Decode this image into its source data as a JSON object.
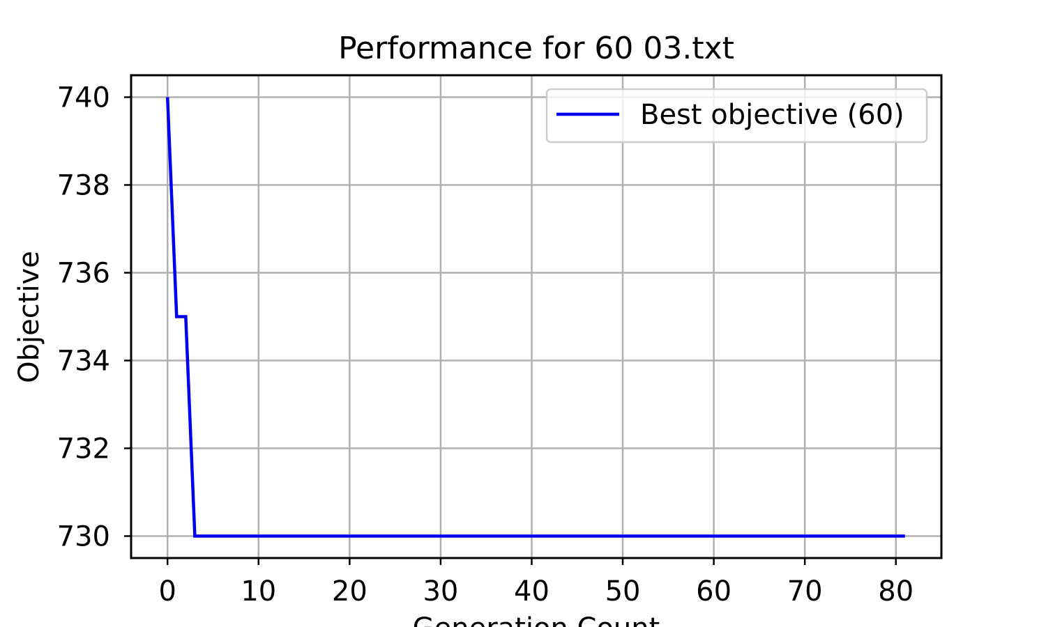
{
  "chart_data": {
    "type": "line",
    "title": "Performance for 60 03.txt",
    "xlabel": "Generation Count",
    "ylabel": "Objective",
    "xlim": [
      -4,
      85
    ],
    "ylim": [
      729.5,
      740.5
    ],
    "xticks": [
      0,
      10,
      20,
      30,
      40,
      50,
      60,
      70,
      80
    ],
    "yticks": [
      730,
      732,
      734,
      736,
      738,
      740
    ],
    "xtick_labels": [
      "0",
      "10",
      "20",
      "30",
      "40",
      "50",
      "60",
      "70",
      "80"
    ],
    "ytick_labels": [
      "730",
      "732",
      "734",
      "736",
      "738",
      "740"
    ],
    "grid": true,
    "legend_position": "top-right",
    "series": [
      {
        "name": "Best objective (60)",
        "color": "#0000ee",
        "x": [
          0,
          1,
          2,
          3,
          81
        ],
        "y": [
          740,
          735,
          735,
          730,
          730
        ]
      }
    ]
  }
}
